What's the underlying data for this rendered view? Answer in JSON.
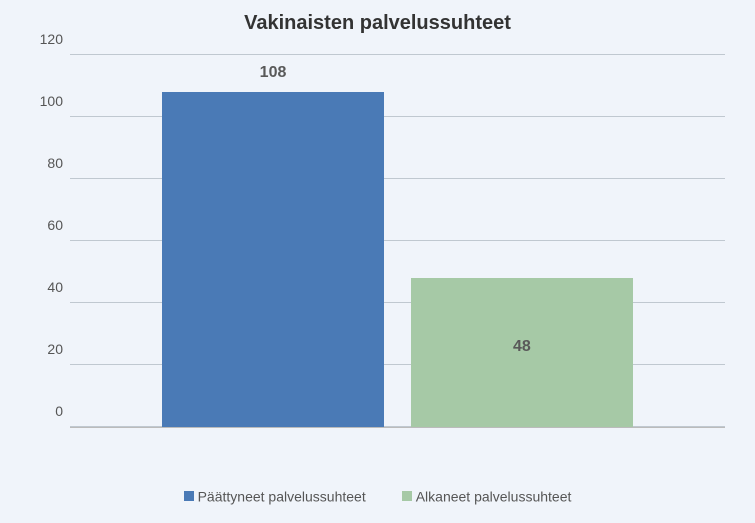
{
  "chart": {
    "type": "bar",
    "title": "Vakinaisten palvelussuhteet",
    "title_fontsize": 20,
    "title_color": "#333333",
    "background_color": "#f0f4fa",
    "grid_color": "#c0c8d0",
    "ylim": [
      0,
      120
    ],
    "ytick_step": 20,
    "yticks": [
      0,
      20,
      40,
      60,
      80,
      100,
      120
    ],
    "tick_fontsize": 14,
    "tick_color": "#555555",
    "series": [
      {
        "name": "Päättyneet palvelussuhteet",
        "value": 108,
        "color": "#4a7ab6",
        "label_color": "#595959"
      },
      {
        "name": "Alkaneet palvelussuhteet",
        "value": 48,
        "color": "#a6c9a6",
        "label_color": "#595959"
      }
    ],
    "bar_width_pct": 34,
    "bar_positions_pct": [
      14,
      52
    ],
    "datalabel_fontsize": 16,
    "legend_swatch_size": 10,
    "legend_fontsize": 14
  }
}
